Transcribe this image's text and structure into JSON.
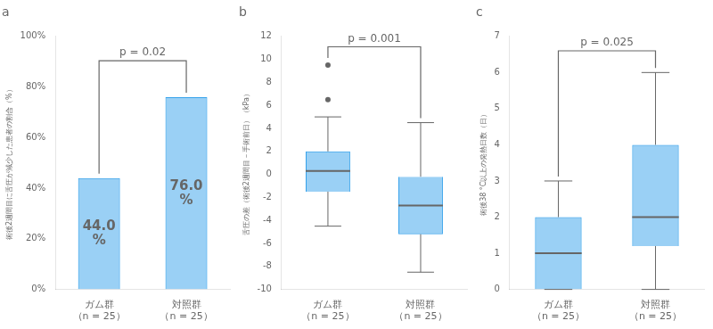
{
  "chart_data": [
    {
      "type": "bar",
      "title": "a",
      "categories": [
        "ガム群\n（n = 25）",
        "対照群\n（n = 25）"
      ],
      "values": [
        0.44,
        0.76
      ],
      "value_labels": [
        "44.0\n%",
        "76.0\n%"
      ],
      "data_labels": true,
      "ylabel": "術後2週間目に舌圧が減少した患者の割合（%）",
      "ylim": [
        0,
        1
      ],
      "yticks": [
        {
          "value": 0,
          "label": "0%"
        },
        {
          "value": 0.2,
          "label": "20%"
        },
        {
          "value": 0.4,
          "label": "40%"
        },
        {
          "value": 0.6,
          "label": "60%"
        },
        {
          "value": 0.8,
          "label": "80%"
        },
        {
          "value": 1,
          "label": "100%"
        }
      ],
      "annotations": [
        "p = 0.02"
      ],
      "grid": false
    },
    {
      "type": "box",
      "title": "b",
      "categories": [
        "ガム群\n（n = 25）",
        "対照群\n（n = 25）"
      ],
      "boxes": [
        {
          "q1": -1.5,
          "median": 0.3,
          "q3": 2.0,
          "whisker_low": -4.5,
          "whisker_high": 5.0,
          "outliers": [
            9.5,
            6.5
          ]
        },
        {
          "q1": -5.2,
          "median": -2.7,
          "q3": -0.2,
          "whisker_low": -8.5,
          "whisker_high": 4.5,
          "outliers": []
        }
      ],
      "ylabel": "舌圧の差（術後2週間目－手術前日）（kPa）",
      "ylim": [
        -10,
        12
      ],
      "yticks": [
        -10,
        -8,
        -6,
        -4,
        -2,
        0,
        2,
        4,
        6,
        8,
        10,
        12
      ],
      "annotations": [
        "p = 0.001"
      ],
      "grid": false
    },
    {
      "type": "box",
      "title": "c",
      "categories": [
        "ガム群\n（n = 25）",
        "対照群\n（n = 25）"
      ],
      "boxes": [
        {
          "q1": 0.0,
          "median": 1.0,
          "q3": 2.0,
          "whisker_low": 0.0,
          "whisker_high": 3.0,
          "outliers": []
        },
        {
          "q1": 1.2,
          "median": 2.0,
          "q3": 4.0,
          "whisker_low": 0.0,
          "whisker_high": 6.0,
          "outliers": []
        }
      ],
      "ylabel": "術後38 °C以上の発熱日数（日）",
      "ylim": [
        0,
        7
      ],
      "yticks": [
        0,
        1,
        2,
        3,
        4,
        5,
        6,
        7
      ],
      "annotations": [
        "p = 0.025"
      ],
      "grid": false
    }
  ]
}
